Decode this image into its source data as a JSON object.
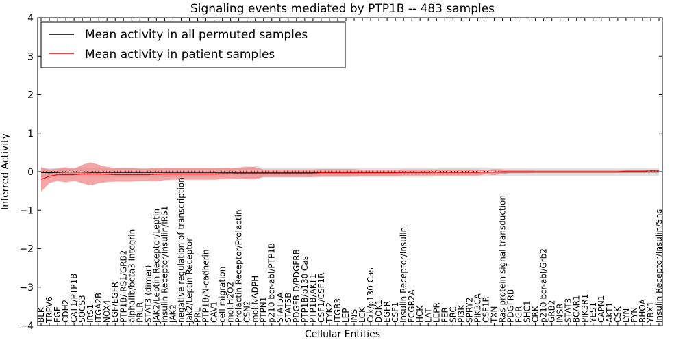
{
  "chart_data": {
    "type": "line",
    "title": "Signaling events mediated by PTP1B -- 483 samples",
    "xlabel": "Cellular Entities",
    "ylabel": "Inferred Activity",
    "ylim": [
      -4,
      4
    ],
    "yticks": [
      4,
      3,
      2,
      1,
      0,
      -1,
      -2,
      -3,
      -4
    ],
    "yticklabels": [
      "4",
      "3",
      "2",
      "1",
      "0",
      "−1",
      "−2",
      "−3",
      "−4"
    ],
    "grid": false,
    "legend_position": "top-left",
    "colors": {
      "permuted": "#000000",
      "patient": "#ff0000",
      "permuted_band": "#bfbfbf",
      "patient_band": "#f08080"
    },
    "categories": [
      "BLK",
      "TRPV6",
      "EGF",
      "CDH2",
      "CAT1/PTP1B",
      "SOCS3",
      "IRS1",
      "ITGA2B",
      "NOX4",
      "EGF/EGFR",
      "PTP1B/IRS1/GRB2",
      "alphaIIb/beta3 Integrin",
      "PRLR",
      "STAT3 (dimer)",
      "JAK2/Leptin Receptor/Leptin",
      "Insulin Receptor/Insulin/IRS1",
      "JAK2",
      "negative regulation of transcription",
      "Jak2/Leptin Receptor",
      "PRL",
      "PTP1B/N-cadherin",
      "CAV1",
      "cell migration",
      "mol:H2O2",
      "Prolactin Receptor/Prolactin",
      "CSN2",
      "mol:NADPH",
      "PTPN1",
      "p210 bcr-abl/PTP1B",
      "STAT5A",
      "STAT5B",
      "PDGFB-D/PDGFRB",
      "PTP1B/p130 Cas",
      "PTP1B/AKT1",
      "CSF1/CSF1R",
      "TYK2",
      "ITGB3",
      "LEP",
      "INS",
      "LCK",
      "Crk/p130 Cas",
      "DOK1",
      "EGFR",
      "CSF1",
      "Insulin Receptor/Insulin",
      "FCGR2A",
      "HCK",
      "LAT",
      "LEPR",
      "FER",
      "SRC",
      "PI3K",
      "SPRY2",
      "PIK3CA",
      "CSF1R",
      "TXN",
      "Ras protein signal transduction",
      "PDGFRB",
      "FGR",
      "SHC1",
      "CRK",
      "p210 bcr-abl/Grb2",
      "GRB2",
      "INSR",
      "STAT3",
      "BCAR1",
      "PIK3R1",
      "YES1",
      "CAPN1",
      "AKT1",
      "CSK",
      "LYN",
      "FYN",
      "RHOA",
      "YBX1",
      "Insulin Receptor/Insulin/Shc"
    ],
    "series": [
      {
        "name": "Mean activity in all permuted samples",
        "values": [
          -0.02,
          -0.03,
          -0.02,
          -0.01,
          -0.01,
          -0.01,
          -0.02,
          -0.02,
          -0.02,
          -0.02,
          -0.02,
          -0.02,
          -0.02,
          -0.02,
          -0.02,
          -0.02,
          -0.02,
          -0.02,
          -0.02,
          -0.02,
          -0.02,
          -0.02,
          -0.02,
          -0.02,
          -0.02,
          -0.02,
          -0.02,
          -0.02,
          -0.02,
          -0.02,
          -0.02,
          -0.02,
          -0.02,
          -0.02,
          -0.02,
          -0.02,
          -0.02,
          -0.02,
          -0.02,
          -0.02,
          -0.02,
          -0.02,
          -0.02,
          -0.02,
          -0.02,
          -0.02,
          -0.02,
          -0.02,
          -0.01,
          -0.01,
          -0.01,
          -0.01,
          -0.01,
          -0.01,
          -0.01,
          -0.01,
          -0.01,
          -0.01,
          -0.01,
          -0.01,
          -0.01,
          -0.01,
          -0.01,
          -0.01,
          -0.01,
          -0.01,
          -0.01,
          -0.01,
          -0.01,
          -0.01,
          -0.01,
          -0.01,
          -0.01,
          -0.01,
          -0.01,
          -0.01
        ],
        "band": [
          0.12,
          0.12,
          0.12,
          0.12,
          0.12,
          0.12,
          0.12,
          0.12,
          0.12,
          0.12,
          0.12,
          0.12,
          0.12,
          0.12,
          0.12,
          0.12,
          0.12,
          0.12,
          0.12,
          0.12,
          0.12,
          0.12,
          0.12,
          0.12,
          0.12,
          0.18,
          0.18,
          0.12,
          0.12,
          0.12,
          0.12,
          0.12,
          0.12,
          0.12,
          0.12,
          0.12,
          0.12,
          0.12,
          0.12,
          0.12,
          0.12,
          0.12,
          0.12,
          0.12,
          0.12,
          0.12,
          0.12,
          0.12,
          0.12,
          0.12,
          0.12,
          0.12,
          0.12,
          0.12,
          0.12,
          0.1,
          0.1,
          0.1,
          0.1,
          0.1,
          0.1,
          0.1,
          0.1,
          0.1,
          0.1,
          0.1,
          0.1,
          0.1,
          0.1,
          0.1,
          0.1,
          0.1,
          0.1,
          0.1,
          0.1,
          0.1
        ]
      },
      {
        "name": "Mean activity in patient samples",
        "values": [
          -0.2,
          -0.12,
          -0.08,
          -0.08,
          -0.08,
          -0.06,
          -0.06,
          -0.06,
          -0.07,
          -0.08,
          -0.08,
          -0.08,
          -0.08,
          -0.08,
          -0.07,
          -0.06,
          -0.06,
          -0.06,
          -0.06,
          -0.06,
          -0.06,
          -0.06,
          -0.05,
          -0.05,
          -0.04,
          -0.04,
          -0.04,
          -0.04,
          -0.04,
          -0.04,
          -0.04,
          -0.04,
          -0.04,
          -0.04,
          -0.03,
          -0.03,
          -0.03,
          -0.03,
          -0.03,
          -0.03,
          -0.03,
          -0.03,
          -0.03,
          -0.03,
          -0.02,
          -0.02,
          -0.02,
          -0.02,
          -0.02,
          -0.02,
          -0.02,
          -0.02,
          -0.02,
          -0.02,
          -0.01,
          -0.01,
          0.0,
          0.0,
          0.0,
          0.0,
          0.0,
          0.0,
          0.0,
          0.0,
          0.0,
          0.0,
          0.0,
          0.0,
          0.0,
          0.0,
          0.0,
          0.01,
          0.01,
          0.01,
          0.02,
          0.02
        ],
        "band": [
          0.32,
          0.18,
          0.16,
          0.2,
          0.16,
          0.24,
          0.3,
          0.24,
          0.2,
          0.18,
          0.18,
          0.18,
          0.16,
          0.16,
          0.18,
          0.16,
          0.15,
          0.15,
          0.15,
          0.15,
          0.15,
          0.15,
          0.15,
          0.15,
          0.15,
          0.16,
          0.16,
          0.1,
          0.1,
          0.1,
          0.1,
          0.1,
          0.1,
          0.1,
          0.1,
          0.1,
          0.1,
          0.1,
          0.1,
          0.08,
          0.08,
          0.08,
          0.08,
          0.08,
          0.08,
          0.08,
          0.08,
          0.08,
          0.08,
          0.08,
          0.08,
          0.08,
          0.08,
          0.08,
          0.06,
          0.08,
          0.06,
          0.04,
          0.04,
          0.04,
          0.03,
          0.03,
          0.03,
          0.03,
          0.03,
          0.03,
          0.03,
          0.03,
          0.03,
          0.03,
          0.03,
          0.03,
          0.03,
          0.03,
          0.03,
          0.03
        ]
      }
    ]
  }
}
